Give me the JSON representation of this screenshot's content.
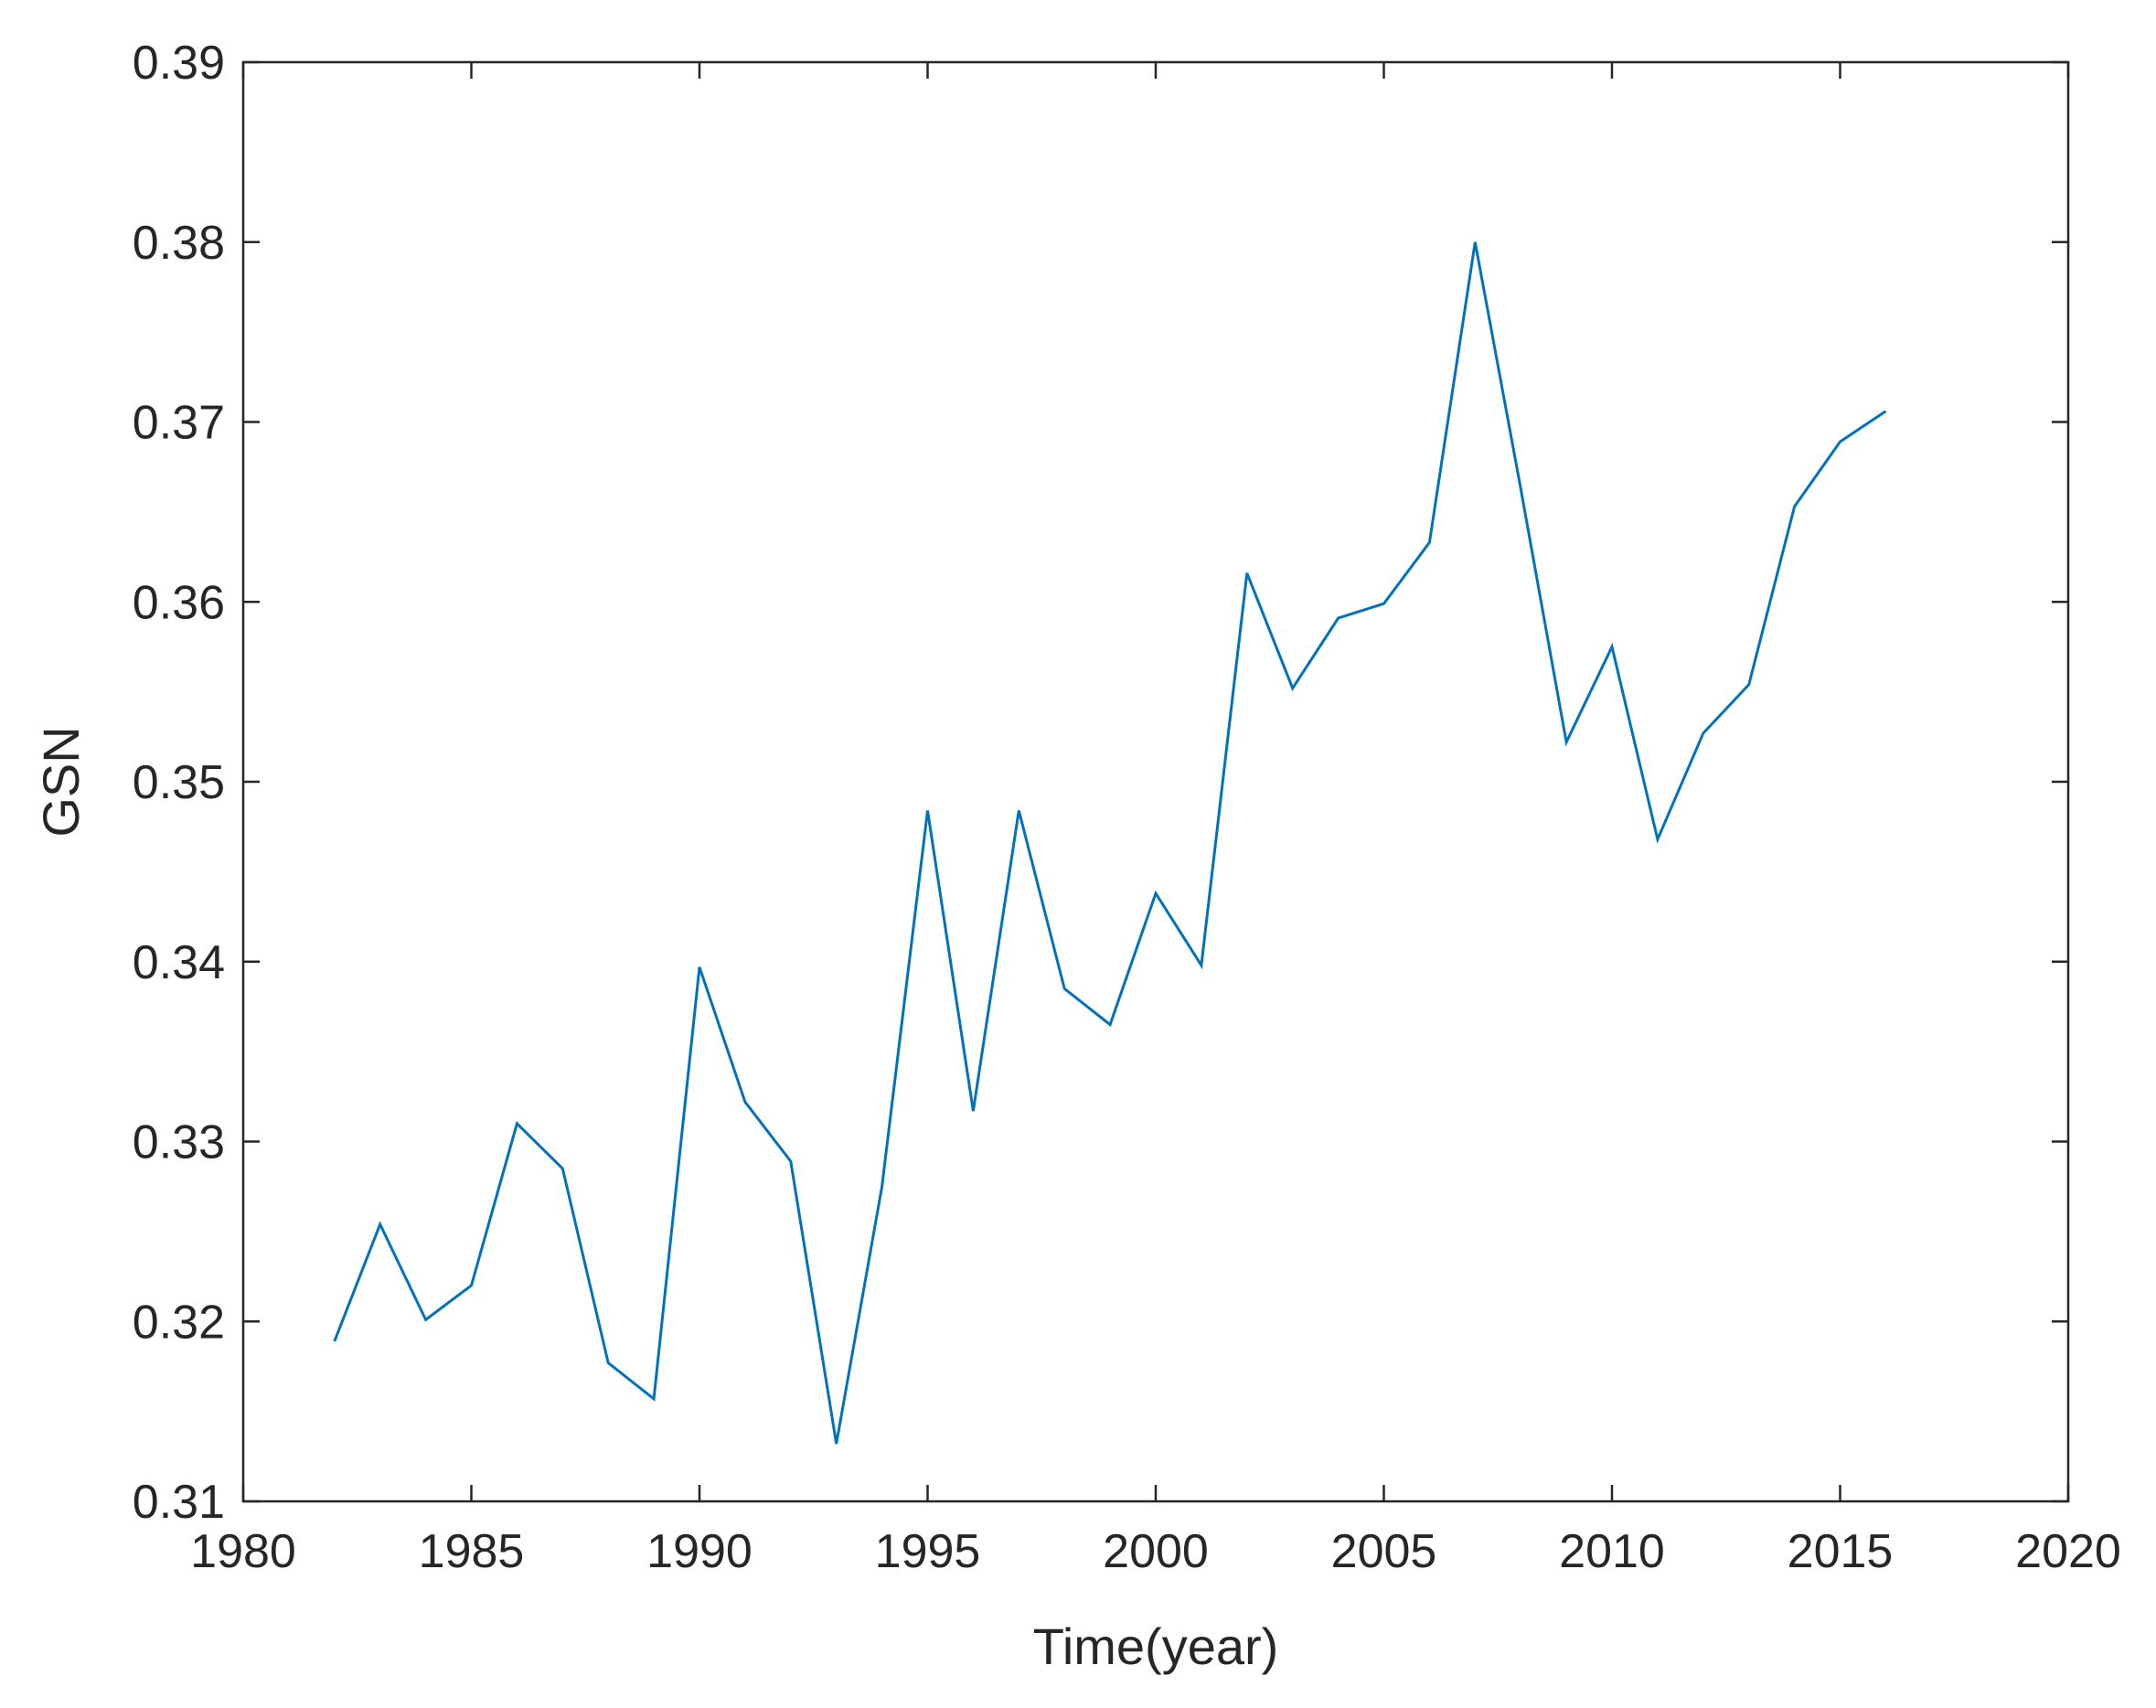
{
  "colors": {
    "series": "#0072BD",
    "axis": "#262626",
    "background": "#ffffff"
  },
  "chart_data": {
    "type": "line",
    "title": "",
    "xlabel": "Time(year)",
    "ylabel": "GSN",
    "xlim": [
      1980,
      2020
    ],
    "ylim": [
      0.31,
      0.39
    ],
    "xticks": [
      1980,
      1985,
      1990,
      1995,
      2000,
      2005,
      2010,
      2015,
      2020
    ],
    "yticks": [
      0.31,
      0.32,
      0.33,
      0.34,
      0.35,
      0.36,
      0.37,
      0.38,
      0.39
    ],
    "xtick_labels": [
      "1980",
      "1985",
      "1990",
      "1995",
      "2000",
      "2005",
      "2010",
      "2015",
      "2020"
    ],
    "ytick_labels": [
      "0.31",
      "0.32",
      "0.33",
      "0.34",
      "0.35",
      "0.36",
      "0.37",
      "0.38",
      "0.39"
    ],
    "grid": false,
    "legend": false,
    "series": [
      {
        "x": [
          1982,
          1983,
          1984,
          1985,
          1986,
          1987,
          1988,
          1989,
          1990,
          1991,
          1992,
          1993,
          1994,
          1995,
          1996,
          1997,
          1998,
          1999,
          2000,
          2001,
          2002,
          2003,
          2004,
          2005,
          2006,
          2007,
          2008,
          2009,
          2010,
          2011,
          2012,
          2013,
          2014,
          2015,
          2016
        ],
        "values": [
          0.3189,
          0.3254,
          0.3201,
          0.322,
          0.331,
          0.3285,
          0.3177,
          0.3157,
          0.3397,
          0.3322,
          0.3289,
          0.3132,
          0.3275,
          0.3484,
          0.3317,
          0.3484,
          0.3385,
          0.3365,
          0.3438,
          0.3398,
          0.3616,
          0.3552,
          0.3591,
          0.3599,
          0.3633,
          0.38,
          0.3663,
          0.3522,
          0.3575,
          0.3468,
          0.3527,
          0.3554,
          0.3653,
          0.3689,
          0.3706
        ]
      }
    ]
  }
}
